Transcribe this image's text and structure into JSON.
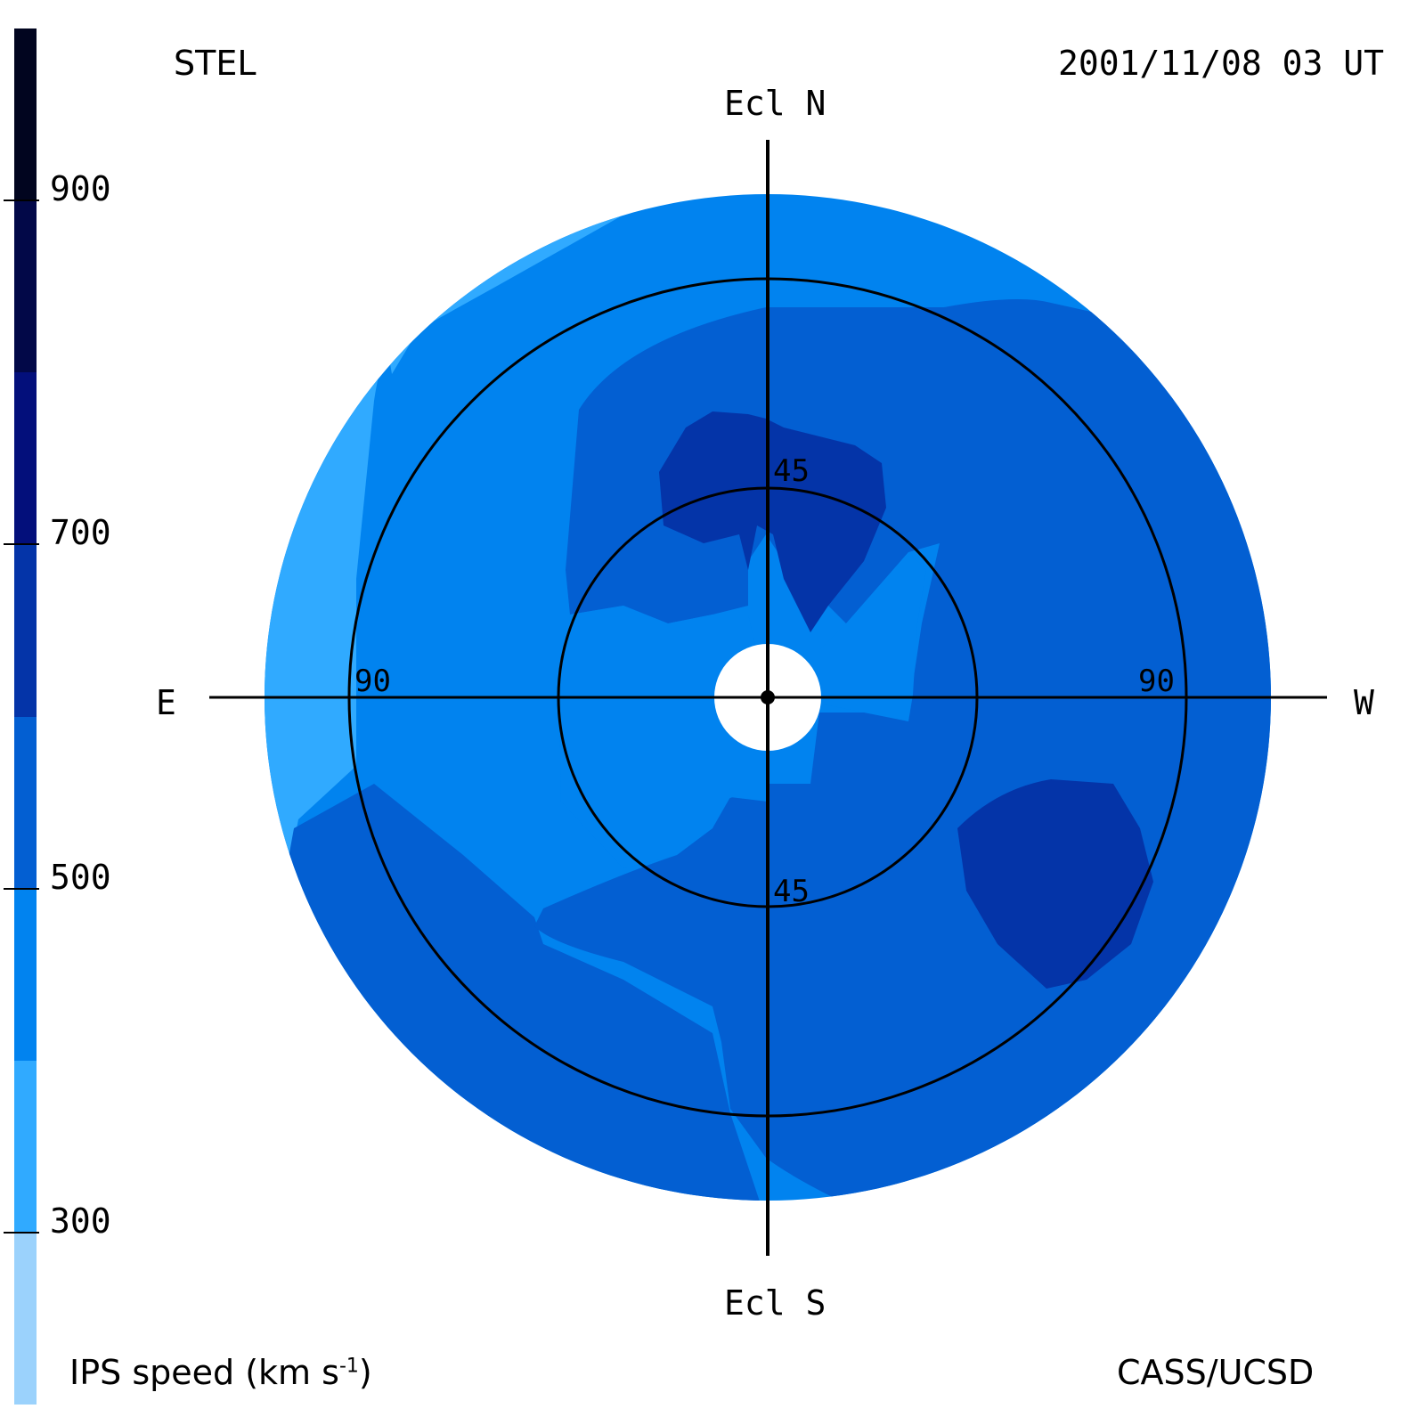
{
  "header": {
    "observatory": "STEL",
    "timestamp": "2001/11/08 03 UT",
    "credit": "CASS/UCSD"
  },
  "colorbar": {
    "label": "IPS speed (km s",
    "label_sup": "-1",
    "label_close": ")",
    "segments": [
      {
        "from": 200,
        "to": 300,
        "color": "#9bd2fc"
      },
      {
        "from": 300,
        "to": 400,
        "color": "#30aaff"
      },
      {
        "from": 400,
        "to": 500,
        "color": "#0183ef"
      },
      {
        "from": 500,
        "to": 600,
        "color": "#035fd2"
      },
      {
        "from": 600,
        "to": 700,
        "color": "#0434a8"
      },
      {
        "from": 700,
        "to": 800,
        "color": "#030f7b"
      },
      {
        "from": 800,
        "to": 900,
        "color": "#020848"
      },
      {
        "from": 900,
        "to": 1000,
        "color": "#01051f"
      }
    ],
    "ticks": [
      "300",
      "500",
      "700",
      "900"
    ]
  },
  "axes": {
    "north": "Ecl N",
    "south": "Ecl S",
    "east": "E",
    "west": "W"
  },
  "rings": {
    "inner_north": "45",
    "inner_south": "45",
    "outer_east": "90",
    "outer_west": "90"
  },
  "chart_data": {
    "type": "heatmap",
    "title": "",
    "description_units": "IPS speed (km s^-1)",
    "range": [
      200,
      1000
    ],
    "elongation_rings_deg": [
      45,
      90
    ],
    "regions": [
      {
        "area": "outer eastern limb",
        "speed_band": [
          300,
          400
        ]
      },
      {
        "area": "general background",
        "speed_band": [
          400,
          500
        ]
      },
      {
        "area": "north-west and south sectors",
        "speed_band": [
          500,
          600
        ]
      },
      {
        "area": "north of center near 45 ring",
        "speed_band": [
          600,
          700
        ]
      },
      {
        "area": "south-west near 90 ring",
        "speed_band": [
          600,
          700
        ]
      }
    ]
  }
}
